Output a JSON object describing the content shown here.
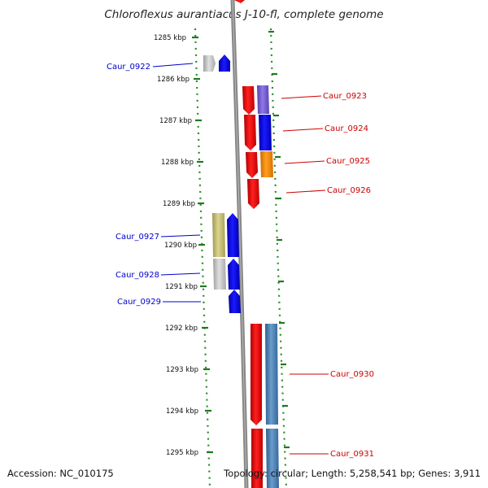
{
  "title": "Chloroflexus aurantiacus J-10-fl, complete genome",
  "ticks": [
    "1285 kbp",
    "1286 kbp",
    "1287 kbp",
    "1288 kbp",
    "1289 kbp",
    "1290 kbp",
    "1291 kbp",
    "1292 kbp",
    "1293 kbp",
    "1294 kbp",
    "1295 kbp"
  ],
  "genes": {
    "left": [
      "Caur_0922",
      "Caur_0927",
      "Caur_0928",
      "Caur_0929"
    ],
    "right": [
      "Caur_0923",
      "Caur_0924",
      "Caur_0925",
      "Caur_0926",
      "Caur_0930",
      "Caur_0931"
    ]
  },
  "colors": {
    "left_label": "#0000cc",
    "right_label": "#cc0000",
    "backbone": "#888888",
    "ticks": "#2a7a2a",
    "gene_red": "#ee0000",
    "gene_blue": "#0000ee",
    "gene_purple": "#7b5fd6",
    "gene_orange": "#ff8c00",
    "gene_olive": "#c8c070",
    "gene_grey": "#c0c0c0",
    "gene_steel": "#4a80b0"
  },
  "footer": {
    "accession": "Accession: NC_010175",
    "summary": "Topology: circular; Length: 5,258,541 bp; Genes: 3,911"
  }
}
